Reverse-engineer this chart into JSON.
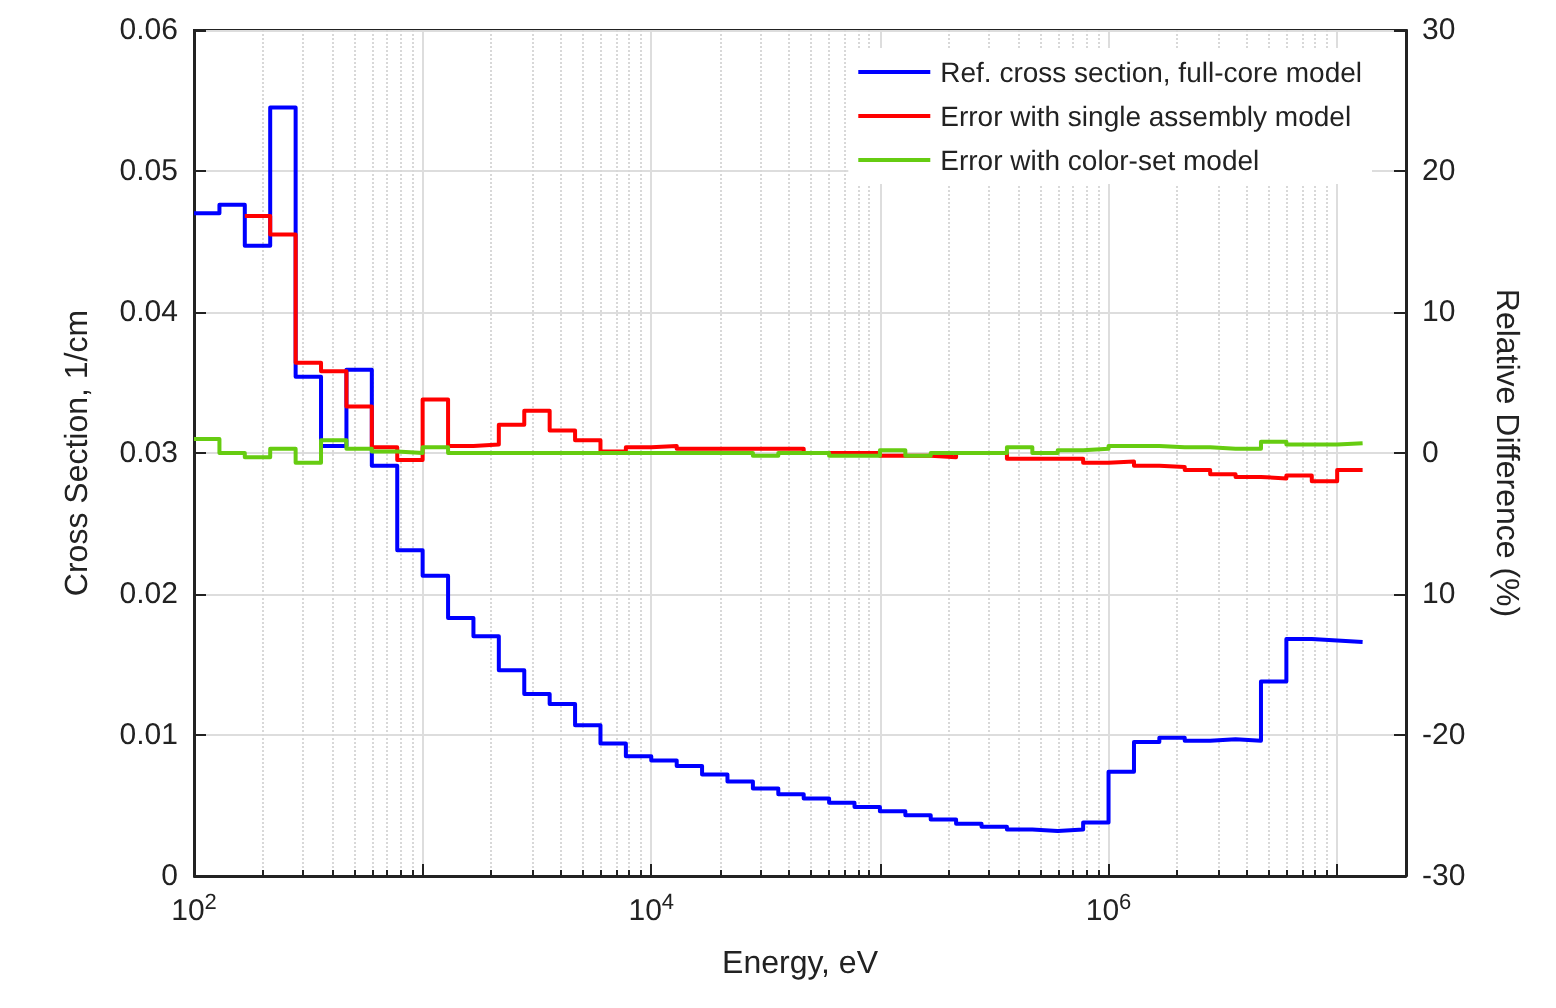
{
  "chart_data": {
    "type": "step",
    "xlabel": "Energy, eV",
    "ylabel": "Cross Section, 1/cm",
    "y2label": "Relative Difference (%)",
    "log": "x",
    "grid": true,
    "legend": "top right",
    "line_style": "solid",
    "marker": "none",
    "xlim": [
      100,
      20000000
    ],
    "xticks": [
      {
        "value": 100,
        "label": "10$^{2}$"
      },
      {
        "value": 1000,
        "label": null
      },
      {
        "value": 10000,
        "label": "10$^{4}$"
      },
      {
        "value": 100000,
        "label": null
      },
      {
        "value": 1000000,
        "label": "10$^{6}$"
      },
      {
        "value": 10000000,
        "label": null
      }
    ],
    "ylim": [
      0,
      0.06
    ],
    "yticks": [
      0,
      0.01,
      0.02,
      0.03,
      0.04,
      0.05,
      0.06
    ],
    "y2lim": [
      -30,
      30
    ],
    "y2ticks": [
      -30,
      -20,
      {
        "value": -10,
        "label": "10"
      },
      0,
      10,
      20,
      30
    ],
    "x": [
      100,
      129.2,
      166.8,
      215.4,
      278.3,
      359.4,
      464.2,
      599.5,
      774.3,
      1000,
      1292,
      1668,
      2154,
      2783,
      3594,
      4642,
      5995,
      7743,
      10000,
      12920,
      16680,
      21540,
      27830,
      35940,
      46420,
      59950,
      77430,
      100000,
      129200,
      166800,
      215400,
      278300,
      359400,
      464200,
      599500,
      774300,
      1000000,
      1292000,
      1668000,
      2154000,
      2783000,
      3594000,
      4642000,
      5995000,
      7743000,
      10000000,
      12920000
    ],
    "series": [
      {
        "name": "Ref. cross section, full-core model",
        "color": "#0000ff",
        "values": [
          0.047,
          0.0476,
          0.0447,
          0.0545,
          0.0354,
          0.0305,
          0.0359,
          0.0291,
          0.0231,
          0.0213,
          0.0183,
          0.017,
          0.0146,
          0.0129,
          0.0122,
          0.0107,
          0.0094,
          0.0085,
          0.0082,
          0.0078,
          0.0072,
          0.0067,
          0.0062,
          0.0058,
          0.0055,
          0.0052,
          0.0049,
          0.0046,
          0.0043,
          0.004,
          0.0037,
          0.0035,
          0.0033,
          0.0032,
          0.0033,
          0.0038,
          0.0074,
          0.0095,
          0.0098,
          0.0096,
          0.0097,
          0.0096,
          0.0138,
          0.0168,
          0.0167,
          0.0166,
          0.0166
        ]
      },
      {
        "name": "Error with single assembly model",
        "color": "#ff0000",
        "axis": "y2",
        "values": [
          null,
          null,
          16.8,
          15.5,
          6.4,
          5.8,
          3.3,
          0.4,
          -0.5,
          3.8,
          0.5,
          0.6,
          2.0,
          3.0,
          1.6,
          0.9,
          0.1,
          0.4,
          0.5,
          0.3,
          0.3,
          0.3,
          0.3,
          0.3,
          0,
          0,
          0,
          -0.2,
          -0.2,
          -0.3,
          0,
          0,
          -0.4,
          -0.4,
          -0.4,
          -0.7,
          -0.6,
          -0.9,
          -1.0,
          -1.2,
          -1.5,
          -1.7,
          -1.8,
          -1.6,
          -2.0,
          -1.2,
          -1.2
        ]
      },
      {
        "name": "Error with color-set model",
        "color": "#66cc11",
        "axis": "y2",
        "values": [
          1.0,
          0,
          -0.3,
          0.3,
          -0.7,
          0.9,
          0.3,
          0.1,
          0,
          0.4,
          0,
          0,
          0,
          0,
          0,
          0,
          0,
          0,
          0,
          0,
          0,
          0,
          -0.2,
          0,
          0,
          -0.2,
          -0.2,
          0.2,
          -0.2,
          0,
          0,
          0,
          0.4,
          0,
          0.2,
          0.3,
          0.5,
          0.5,
          0.4,
          0.4,
          0.3,
          0.3,
          0.8,
          0.6,
          0.6,
          0.7,
          0.7
        ]
      }
    ]
  }
}
